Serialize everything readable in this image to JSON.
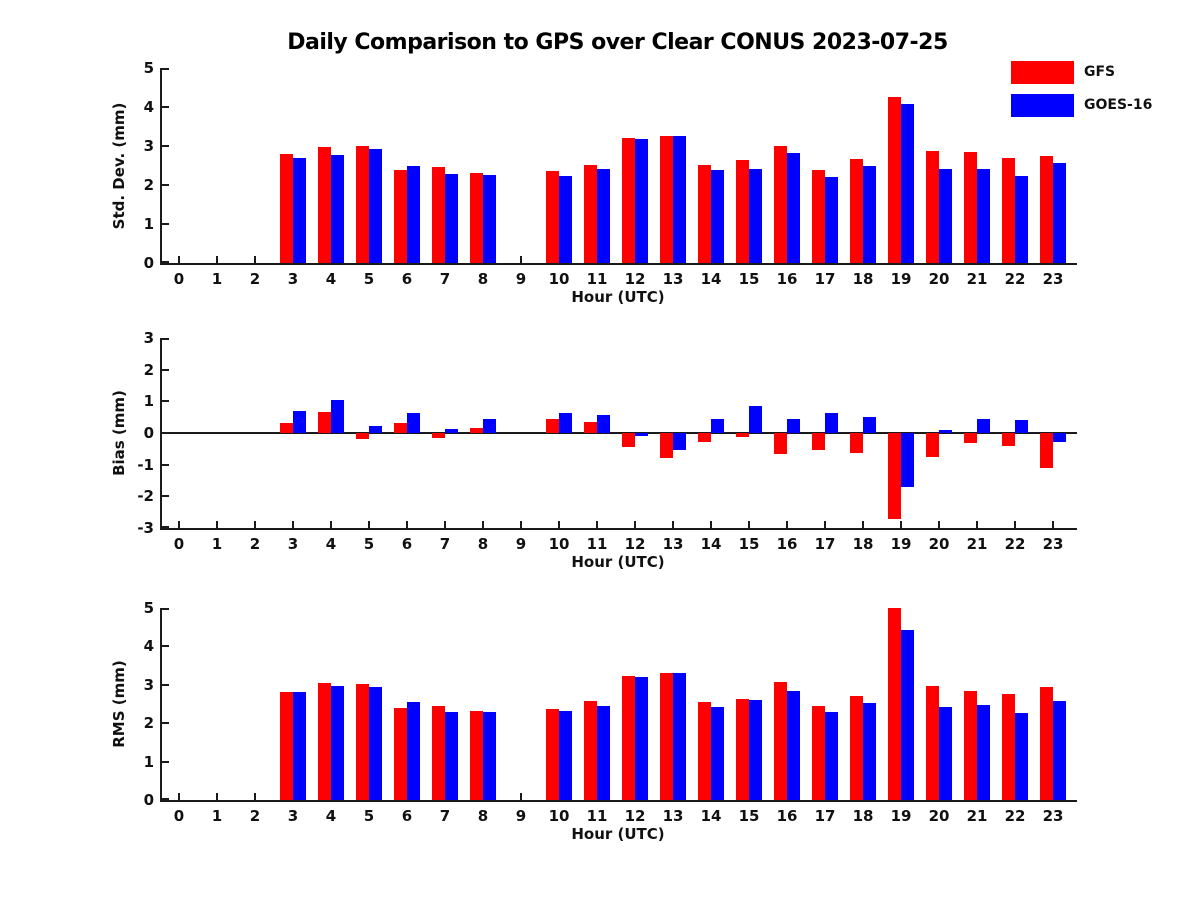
{
  "title": "Daily Comparison to GPS over Clear CONUS 2023-07-25",
  "legend": {
    "items": [
      {
        "label": "GFS",
        "color": "#ff0000"
      },
      {
        "label": "GOES-16",
        "color": "#0000ff"
      }
    ]
  },
  "chart_data": [
    {
      "type": "bar",
      "title": "",
      "xlabel": "Hour (UTC)",
      "ylabel": "Std. Dev. (mm)",
      "ylim": [
        0,
        5
      ],
      "grid": false,
      "legend_position": "upper-right-outside",
      "categories": [
        0,
        1,
        2,
        3,
        4,
        5,
        6,
        7,
        8,
        9,
        10,
        11,
        12,
        13,
        14,
        15,
        16,
        17,
        18,
        19,
        20,
        21,
        22,
        23
      ],
      "series": [
        {
          "name": "GFS",
          "color": "#ff0000",
          "values": [
            null,
            null,
            null,
            2.8,
            2.97,
            3.0,
            2.38,
            2.45,
            2.3,
            null,
            2.35,
            2.52,
            3.2,
            3.25,
            2.52,
            2.63,
            3.0,
            2.38,
            2.67,
            4.25,
            2.87,
            2.84,
            2.7,
            2.75
          ]
        },
        {
          "name": "GOES-16",
          "color": "#0000ff",
          "values": [
            null,
            null,
            null,
            2.7,
            2.78,
            2.92,
            2.48,
            2.27,
            2.25,
            null,
            2.22,
            2.4,
            3.17,
            3.25,
            2.38,
            2.4,
            2.82,
            2.2,
            2.48,
            4.07,
            2.4,
            2.42,
            2.22,
            2.57
          ]
        }
      ]
    },
    {
      "type": "bar",
      "title": "",
      "xlabel": "Hour (UTC)",
      "ylabel": "Bias (mm)",
      "ylim": [
        -3,
        3
      ],
      "grid": false,
      "zero_line": true,
      "categories": [
        0,
        1,
        2,
        3,
        4,
        5,
        6,
        7,
        8,
        9,
        10,
        11,
        12,
        13,
        14,
        15,
        16,
        17,
        18,
        19,
        20,
        21,
        22,
        23
      ],
      "series": [
        {
          "name": "GFS",
          "color": "#ff0000",
          "values": [
            null,
            null,
            null,
            0.32,
            0.65,
            -0.2,
            0.32,
            -0.17,
            0.17,
            null,
            0.45,
            0.35,
            -0.45,
            -0.78,
            -0.27,
            -0.13,
            -0.65,
            -0.55,
            -0.62,
            -2.7,
            -0.75,
            -0.33,
            -0.4,
            -1.12
          ]
        },
        {
          "name": "GOES-16",
          "color": "#0000ff",
          "values": [
            null,
            null,
            null,
            0.7,
            1.05,
            0.22,
            0.64,
            0.12,
            0.45,
            null,
            0.62,
            0.57,
            -0.08,
            -0.55,
            0.43,
            0.85,
            0.44,
            0.62,
            0.5,
            -1.72,
            0.1,
            0.45,
            0.42,
            -0.27
          ]
        }
      ]
    },
    {
      "type": "bar",
      "title": "",
      "xlabel": "Hour (UTC)",
      "ylabel": "RMS (mm)",
      "ylim": [
        0,
        5
      ],
      "grid": false,
      "categories": [
        0,
        1,
        2,
        3,
        4,
        5,
        6,
        7,
        8,
        9,
        10,
        11,
        12,
        13,
        14,
        15,
        16,
        17,
        18,
        19,
        20,
        21,
        22,
        23
      ],
      "series": [
        {
          "name": "GFS",
          "color": "#ff0000",
          "values": [
            null,
            null,
            null,
            2.82,
            3.05,
            3.02,
            2.4,
            2.45,
            2.32,
            null,
            2.38,
            2.57,
            3.22,
            3.32,
            2.55,
            2.62,
            3.07,
            2.45,
            2.72,
            5.0,
            2.97,
            2.85,
            2.75,
            2.95
          ]
        },
        {
          "name": "GOES-16",
          "color": "#0000ff",
          "values": [
            null,
            null,
            null,
            2.8,
            2.97,
            2.95,
            2.55,
            2.28,
            2.3,
            null,
            2.33,
            2.45,
            3.2,
            3.3,
            2.43,
            2.6,
            2.85,
            2.3,
            2.53,
            4.42,
            2.42,
            2.48,
            2.27,
            2.58
          ]
        }
      ]
    }
  ]
}
